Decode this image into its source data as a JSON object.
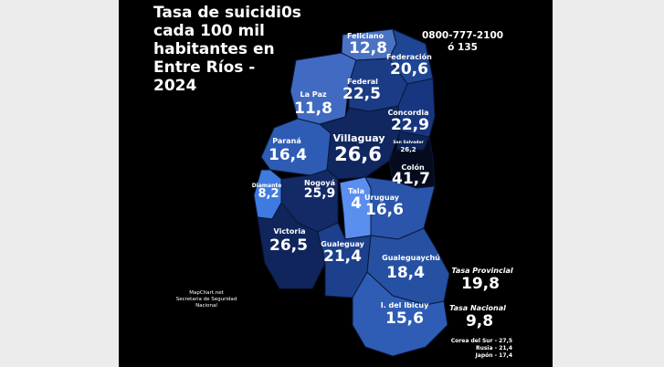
{
  "title_lines": [
    "Tasa de suicidi0s",
    "cada 100 mil",
    "habitantes en",
    "Entre Ríos -",
    "2024"
  ],
  "phone": {
    "line1": "0800-777-2100",
    "line2": "ó 135"
  },
  "departments": [
    {
      "name": "Feliciano",
      "value": "12,8",
      "color": "#4b73c4"
    },
    {
      "name": "Federación",
      "value": "20,6",
      "color": "#1f4595"
    },
    {
      "name": "La Paz",
      "value": "11,8",
      "color": "#416bc2"
    },
    {
      "name": "Federal",
      "value": "22,5",
      "color": "#1b3b85"
    },
    {
      "name": "Concordia",
      "value": "22,9",
      "color": "#183680"
    },
    {
      "name": "Paraná",
      "value": "16,4",
      "color": "#2e5cb4"
    },
    {
      "name": "Villaguay",
      "value": "26,6",
      "color": "#10275f"
    },
    {
      "name": "San Salvador",
      "value": "26,2",
      "color": "#0f245a"
    },
    {
      "name": "Colón",
      "value": "41,7",
      "color": "#040b1e"
    },
    {
      "name": "Diamante",
      "value": "8,2",
      "color": "#3f7ae0"
    },
    {
      "name": "Nogoyá",
      "value": "25,9",
      "color": "#132a66"
    },
    {
      "name": "Tala",
      "value": "4",
      "color": "#5a8ff0"
    },
    {
      "name": "Uruguay",
      "value": "16,6",
      "color": "#2a55ab"
    },
    {
      "name": "Victoria",
      "value": "26,5",
      "color": "#0f255c"
    },
    {
      "name": "Gualeguay",
      "value": "21,4",
      "color": "#1d408c"
    },
    {
      "name": "Gualeguaychú",
      "value": "18,4",
      "color": "#2650a2"
    },
    {
      "name": "I. del Ibicuy",
      "value": "15,6",
      "color": "#2f5db5"
    }
  ],
  "side": {
    "provincial_label": "Tasa Provincial",
    "provincial_value": "19,8",
    "national_label": "Tasa Nacional",
    "national_value": "9,8"
  },
  "international": [
    "Corea del Sur - 27,5",
    "Rusia - 21,4",
    "Japón - 17,4"
  ],
  "source": [
    "MapChart.net",
    "Secretaria de Seguridad",
    "Nacional"
  ]
}
